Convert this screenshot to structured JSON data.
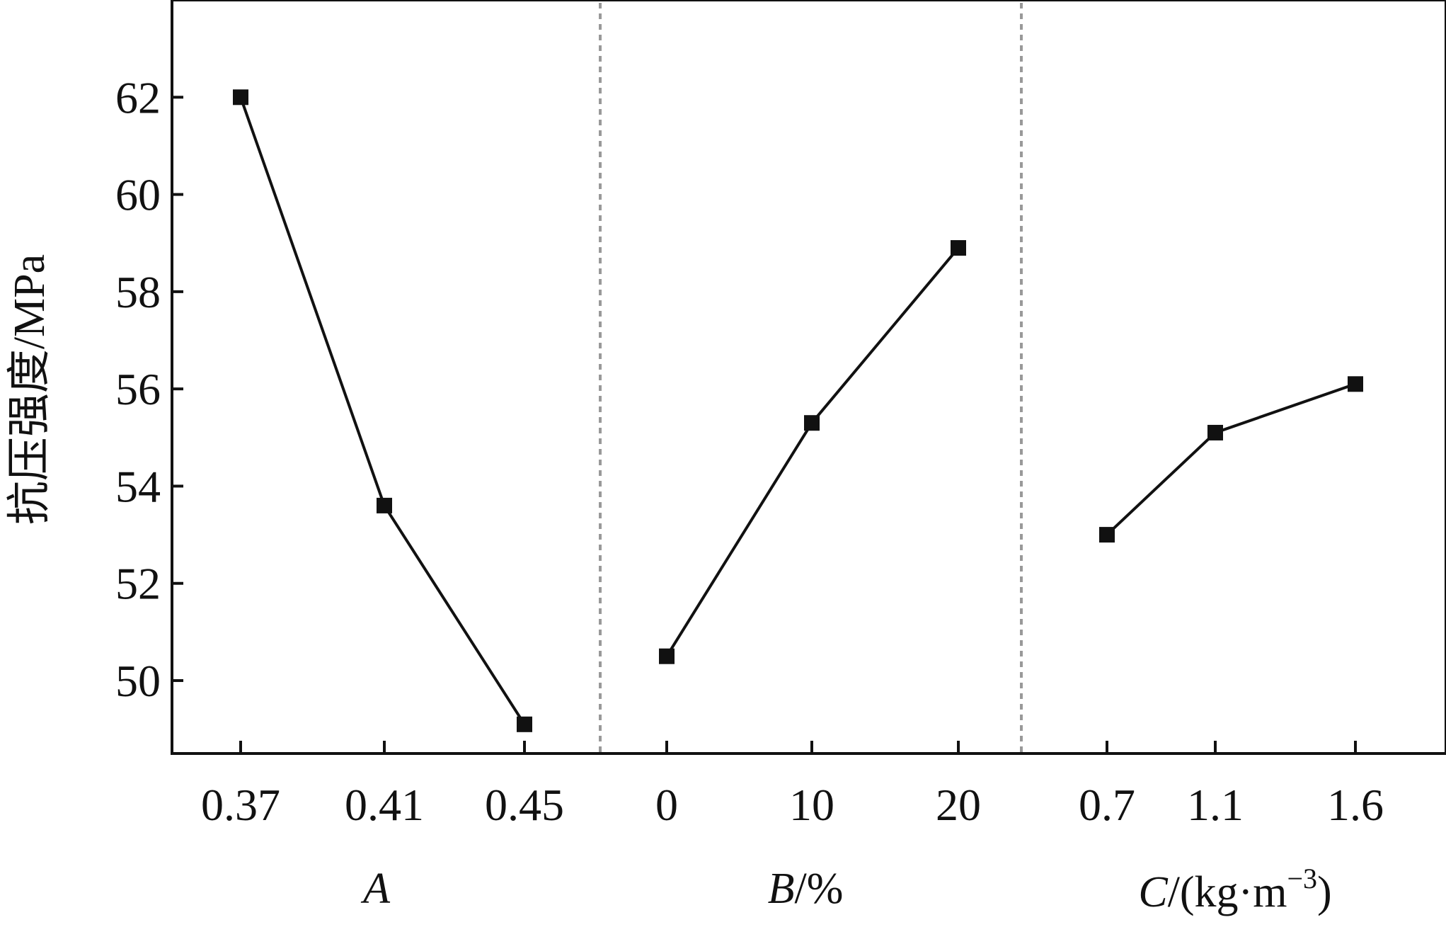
{
  "chart_data": {
    "type": "line",
    "ylabel": "抗压强度/MPa",
    "ylim": [
      48.5,
      64
    ],
    "yticks": [
      50,
      52,
      54,
      56,
      58,
      60,
      62
    ],
    "grid": false,
    "legend": "none",
    "colors": {
      "line": "#111111",
      "marker": "#111111",
      "divider": "#999999"
    },
    "panels": [
      {
        "factor": "A",
        "unit": "",
        "categories": [
          "0.37",
          "0.41",
          "0.45"
        ],
        "values": [
          62.0,
          53.6,
          49.1
        ]
      },
      {
        "factor": "B",
        "unit": "/%",
        "categories": [
          "0",
          "10",
          "20"
        ],
        "values": [
          50.5,
          55.3,
          58.9
        ]
      },
      {
        "factor": "C",
        "unit": "/(kg·m",
        "unit_sup": "−3",
        "unit_end": ")",
        "categories": [
          "0.7",
          "1.1",
          "1.6"
        ],
        "values": [
          53.0,
          55.1,
          56.1
        ]
      }
    ]
  }
}
